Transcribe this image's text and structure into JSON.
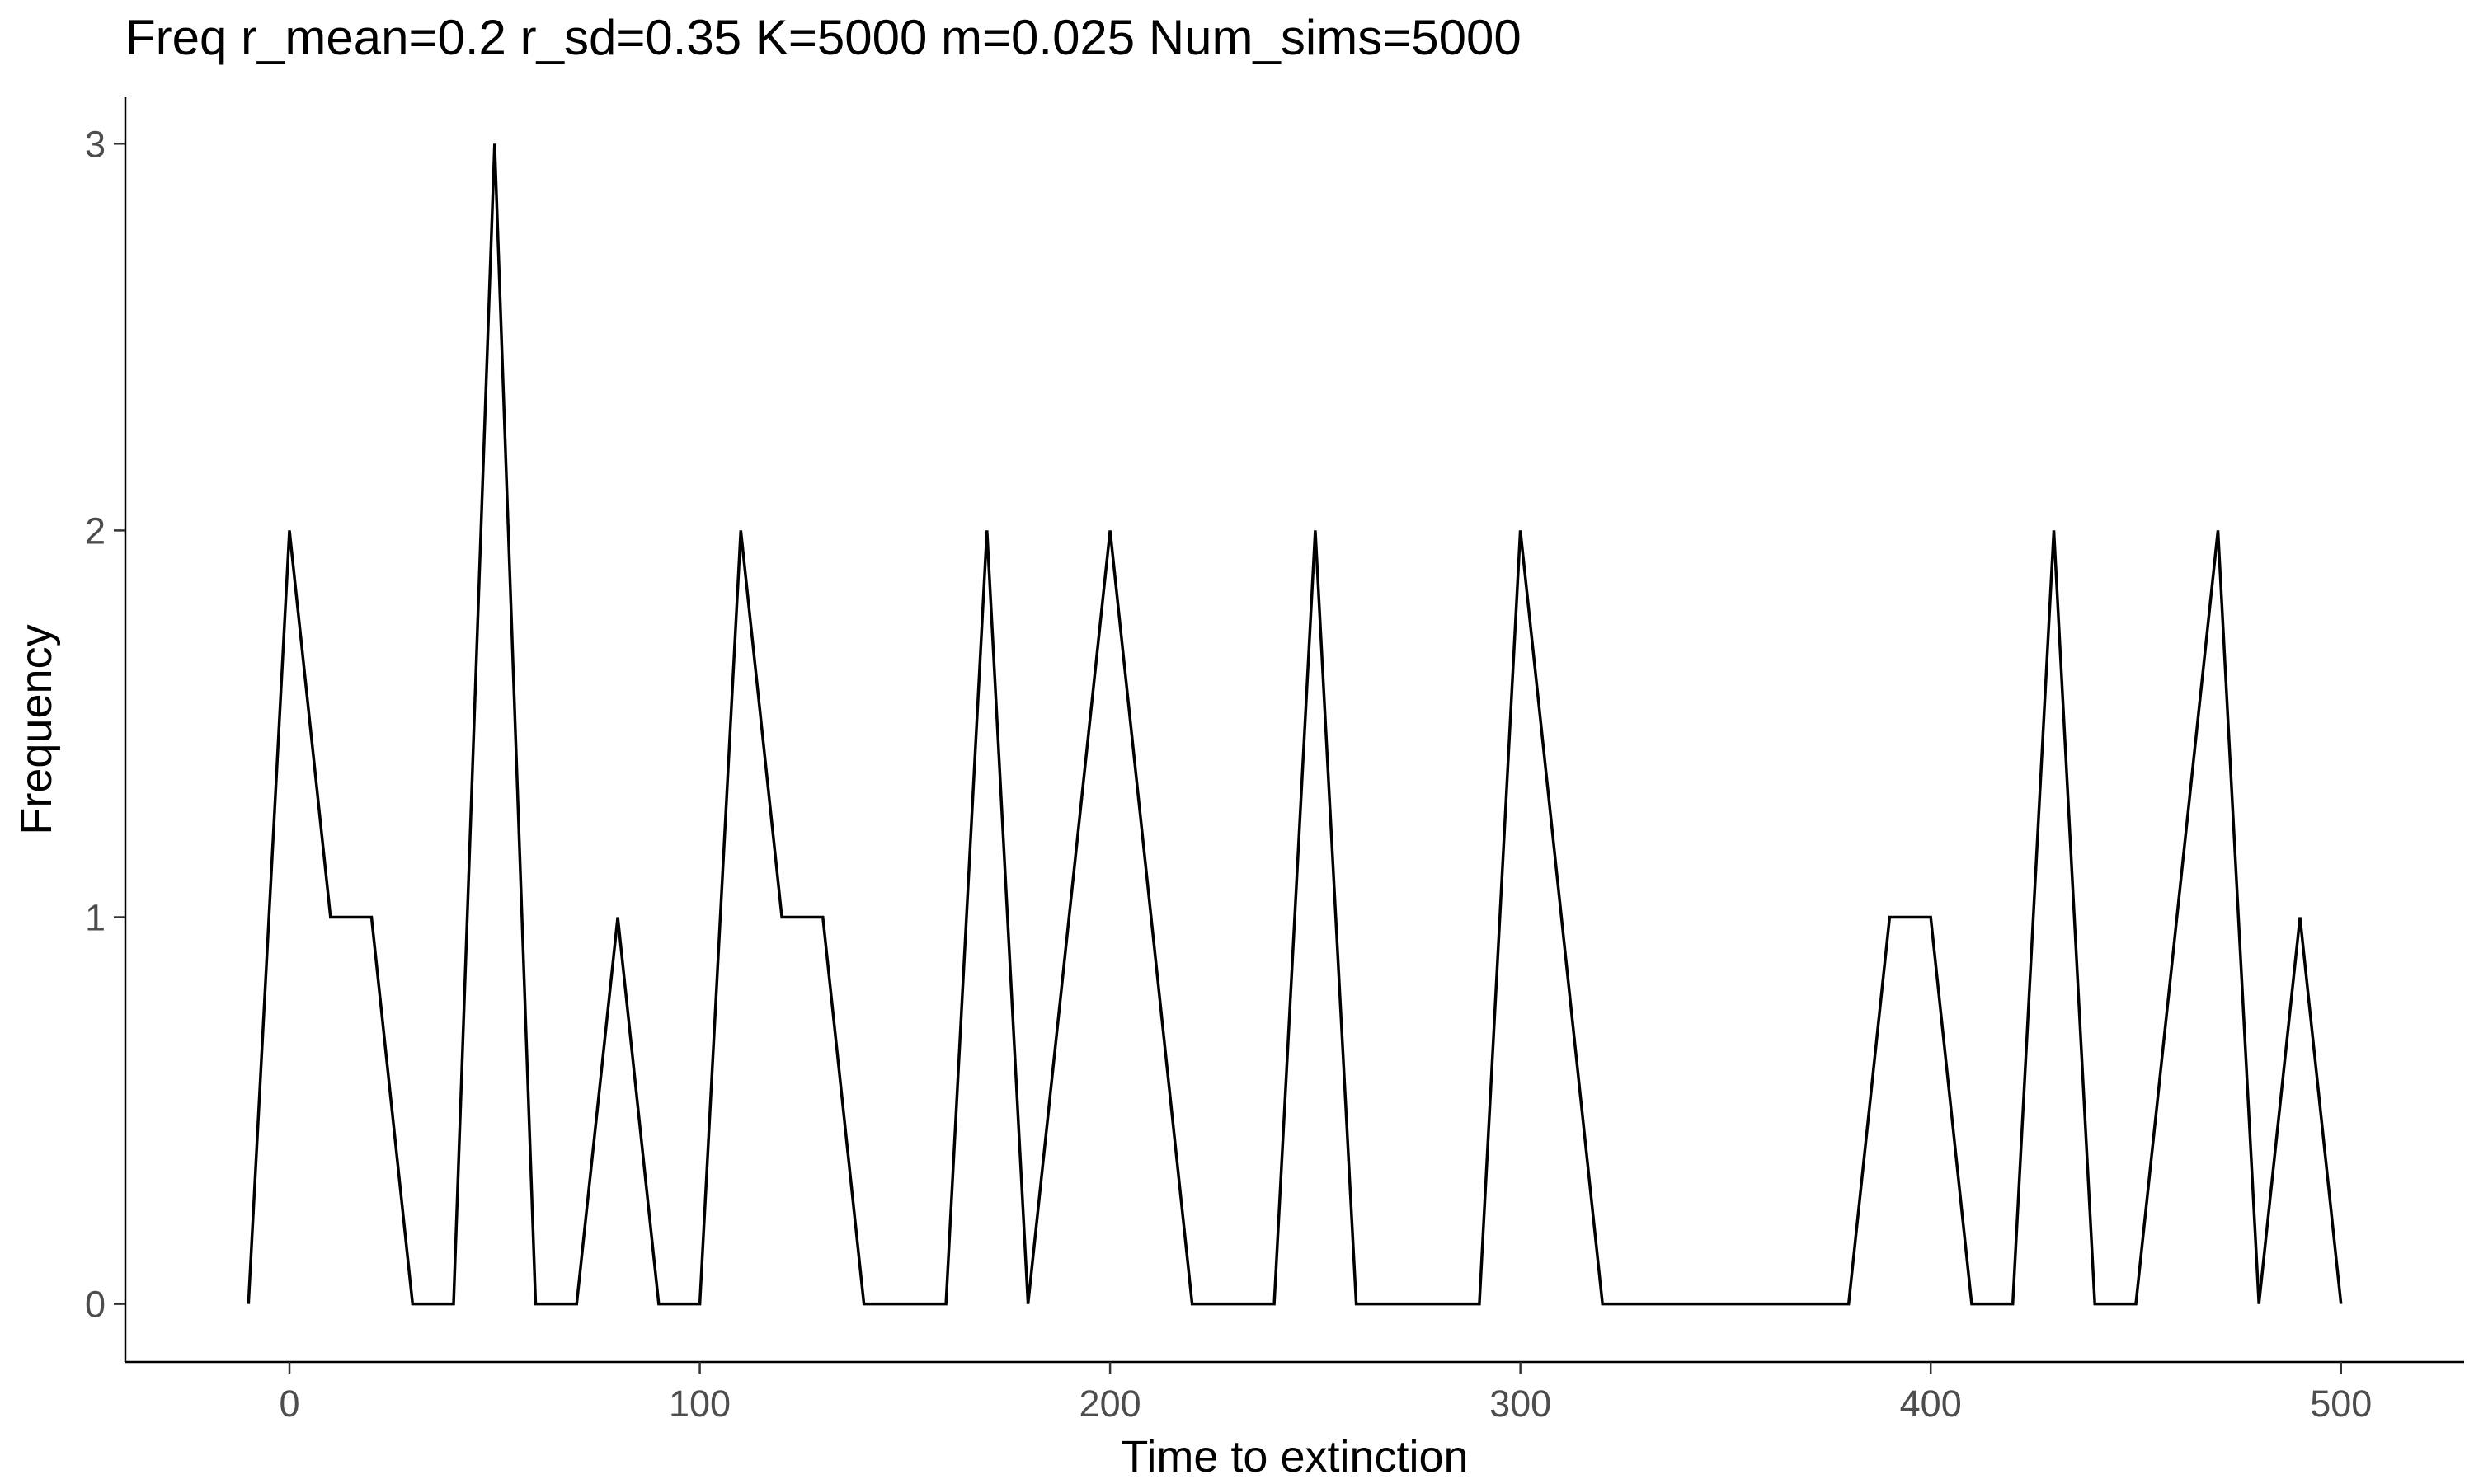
{
  "chart_data": {
    "type": "line",
    "title": "Freq r_mean=0.2 r_sd=0.35 K=5000 m=0.025 Num_sims=5000",
    "xlabel": "Time to extinction",
    "ylabel": "Frequency",
    "xlim": [
      -40,
      530
    ],
    "ylim": [
      -0.15,
      3.12
    ],
    "xticks": [
      0,
      100,
      200,
      300,
      400,
      500
    ],
    "yticks": [
      0,
      1,
      2,
      3
    ],
    "grid": false,
    "series": [
      {
        "color": "#000000",
        "x": [
          -10,
          0,
          10,
          20,
          30,
          40,
          50,
          60,
          70,
          80,
          90,
          100,
          110,
          120,
          130,
          140,
          150,
          160,
          170,
          180,
          200,
          220,
          230,
          240,
          250,
          260,
          270,
          280,
          290,
          300,
          320,
          330,
          340,
          350,
          360,
          370,
          380,
          390,
          400,
          410,
          420,
          430,
          440,
          450,
          470,
          480,
          490,
          500
        ],
        "y": [
          0,
          2,
          1,
          1,
          0,
          0,
          3,
          0,
          0,
          1,
          0,
          0,
          2,
          1,
          1,
          0,
          0,
          0,
          2,
          0,
          2,
          0,
          0,
          0,
          2,
          0,
          0,
          0,
          0,
          2,
          0,
          0,
          0,
          0,
          0,
          0,
          0,
          1,
          1,
          0,
          0,
          2,
          0,
          0,
          2,
          0,
          1,
          0
        ]
      }
    ]
  }
}
